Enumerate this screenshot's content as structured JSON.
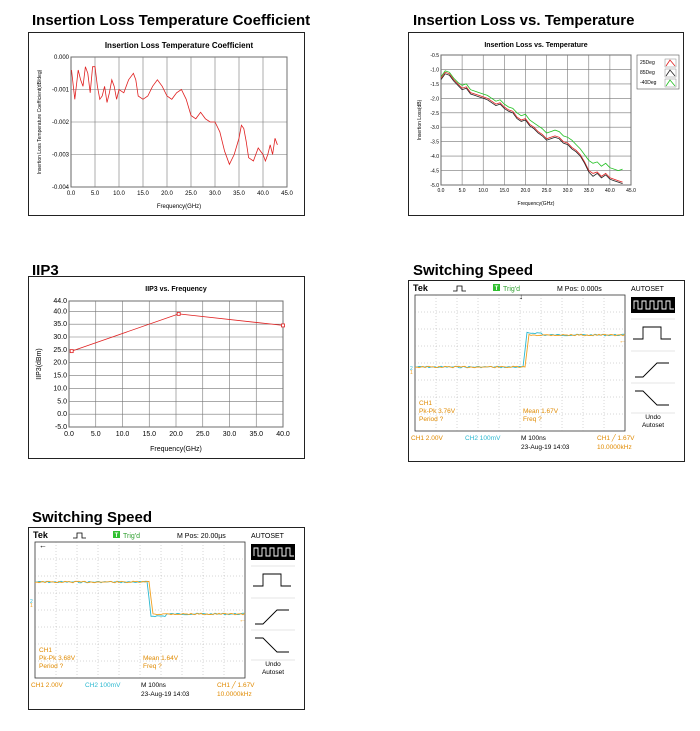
{
  "charts": [
    {
      "heading": "Insertion Loss Temperature Coefficient",
      "title": "Insertion Loss Temperature Coefficient",
      "xlabel": "Frequency(GHz)",
      "ylabel": "Insertion Loss Temperature Coefficient(dB/deg)",
      "xticks": [
        "0.0",
        "5.0",
        "10.0",
        "15.0",
        "20.0",
        "25.0",
        "30.0",
        "35.0",
        "40.0",
        "45.0"
      ],
      "yticks": [
        "0.000",
        "-0.001",
        "-0.002",
        "-0.003",
        "-0.004"
      ]
    },
    {
      "heading": "Insertion Loss vs. Temperature",
      "title": "Insertion Loss vs. Temperature",
      "xlabel": "Frequency(GHz)",
      "ylabel": "Insertion Loss(dB)",
      "xticks": [
        "0.0",
        "5.0",
        "10.0",
        "15.0",
        "20.0",
        "25.0",
        "30.0",
        "35.0",
        "40.0",
        "45.0"
      ],
      "yticks": [
        "-0.5",
        "-1.0",
        "-1.5",
        "-2.0",
        "-2.5",
        "-3.0",
        "-3.5",
        "-4.0",
        "-4.5",
        "-5.0"
      ],
      "legend": [
        "25Deg",
        "85Deg",
        "-40Deg"
      ]
    },
    {
      "heading": "IIP3",
      "title": "IIP3 vs. Frequency",
      "xlabel": "Frequency(GHz)",
      "ylabel": "IIP3(dBm)",
      "xticks": [
        "0.0",
        "5.0",
        "10.0",
        "15.0",
        "20.0",
        "25.0",
        "30.0",
        "35.0",
        "40.0"
      ],
      "yticks": [
        "44.0",
        "40.0",
        "35.0",
        "30.0",
        "25.0",
        "20.0",
        "15.0",
        "10.0",
        "5.0",
        "0.0",
        "-5.0"
      ]
    }
  ],
  "scopes": [
    {
      "heading": "Switching Speed",
      "brand": "Tek",
      "trig": "Trig'd",
      "mpos": "M Pos: 0.000s",
      "autoset": "AUTOSET",
      "undo": "Undo",
      "undo2": "Autoset",
      "ch1_label": "CH1",
      "pkpk": "Pk-Pk 3.76V",
      "period": "Period ?",
      "mean": "Mean 1.67V",
      "freq": "Freq ?",
      "ch1_scale": "CH1  2.00V",
      "ch2_scale": "CH2  100mV",
      "timebase": "M 100ns",
      "date": "23-Aug-19 14:03",
      "trig_level": "CH1 ╱ 1.67V",
      "trig_freq": "10.0000kHz"
    },
    {
      "heading": "Switching Speed",
      "brand": "Tek",
      "trig": "Trig'd",
      "mpos": "M Pos: 20.00µs",
      "autoset": "AUTOSET",
      "undo": "Undo",
      "undo2": "Autoset",
      "ch1_label": "CH1",
      "pkpk": "Pk-Pk 3.68V",
      "period": "Period ?",
      "mean": "Mean 1.64V",
      "freq": "Freq ?",
      "ch1_scale": "CH1  2.00V",
      "ch2_scale": "CH2  100mV",
      "timebase": "M 100ns",
      "date": "23-Aug-19 14:03",
      "trig_level": "CH1 ╱ 1.67V",
      "trig_freq": "10.0000kHz"
    }
  ],
  "chart_data": [
    {
      "type": "line",
      "title": "Insertion Loss Temperature Coefficient",
      "xlabel": "Frequency(GHz)",
      "ylabel": "Insertion Loss Temperature Coefficient(dB/deg)",
      "xlim": [
        0,
        45
      ],
      "ylim": [
        -0.004,
        0.0
      ],
      "color": "#e02020",
      "x": [
        0.1,
        0.8,
        1.5,
        2.0,
        2.5,
        3.0,
        3.5,
        4.0,
        4.5,
        5.0,
        5.5,
        6.0,
        6.5,
        7.0,
        7.5,
        8.0,
        8.5,
        9.0,
        9.5,
        10.0,
        11.0,
        12.0,
        13.0,
        13.5,
        14.0,
        15.0,
        16.0,
        17.0,
        18.0,
        19.0,
        20.0,
        21.0,
        22.0,
        23.0,
        24.0,
        25.0,
        26.0,
        27.0,
        28.0,
        29.0,
        30.0,
        31.0,
        32.0,
        33.0,
        34.0,
        35.0,
        35.5,
        36.0,
        36.5,
        37.0,
        38.0,
        39.0,
        40.0,
        40.5,
        41.0,
        41.5,
        42.0,
        42.5,
        43.0
      ],
      "y": [
        -0.0004,
        -0.0013,
        -0.0004,
        -0.0007,
        -0.0009,
        -0.0003,
        -0.0005,
        -0.0011,
        -0.0003,
        -0.0003,
        -0.0009,
        -0.0013,
        -0.0012,
        -0.0009,
        -0.0014,
        -0.0011,
        -0.0007,
        -0.0009,
        -0.0013,
        -0.001,
        -0.0011,
        -0.0007,
        -0.0005,
        -0.0007,
        -0.0012,
        -0.0013,
        -0.0012,
        -0.0009,
        -0.0007,
        -0.0009,
        -0.0012,
        -0.0013,
        -0.0011,
        -0.001,
        -0.0013,
        -0.0018,
        -0.0019,
        -0.0017,
        -0.0019,
        -0.002,
        -0.002,
        -0.0023,
        -0.0029,
        -0.0033,
        -0.003,
        -0.0025,
        -0.0021,
        -0.0022,
        -0.0026,
        -0.0031,
        -0.0032,
        -0.0028,
        -0.003,
        -0.0032,
        -0.003,
        -0.0027,
        -0.003,
        -0.0025,
        -0.0027
      ]
    },
    {
      "type": "line",
      "title": "Insertion Loss vs. Temperature",
      "xlabel": "Frequency(GHz)",
      "ylabel": "Insertion Loss(dB)",
      "xlim": [
        0,
        45
      ],
      "ylim": [
        -5.0,
        -0.5
      ],
      "legend_position": "top-right",
      "x": [
        0,
        1,
        2,
        3,
        4,
        5,
        6,
        7,
        8,
        9,
        10,
        11,
        12,
        13,
        14,
        15,
        16,
        17,
        18,
        19,
        20,
        21,
        22,
        23,
        24,
        25,
        26,
        27,
        28,
        29,
        30,
        31,
        32,
        33,
        34,
        35,
        36,
        37,
        38,
        39,
        40,
        41,
        42,
        43
      ],
      "series": [
        {
          "name": "25Deg",
          "color": "#e02020",
          "values": [
            -1.3,
            -1.1,
            -1.15,
            -1.35,
            -1.5,
            -1.65,
            -1.6,
            -1.8,
            -1.85,
            -1.9,
            -1.95,
            -2.0,
            -2.1,
            -2.2,
            -2.15,
            -2.3,
            -2.4,
            -2.45,
            -2.65,
            -2.75,
            -2.7,
            -2.9,
            -3.0,
            -3.15,
            -3.25,
            -3.4,
            -3.35,
            -3.3,
            -3.35,
            -3.5,
            -3.55,
            -3.7,
            -3.8,
            -3.95,
            -4.2,
            -4.5,
            -4.6,
            -4.55,
            -4.7,
            -4.6,
            -4.75,
            -4.8,
            -4.85,
            -4.9
          ]
        },
        {
          "name": "85Deg",
          "color": "#222222",
          "values": [
            -1.35,
            -1.15,
            -1.2,
            -1.4,
            -1.55,
            -1.7,
            -1.65,
            -1.85,
            -1.9,
            -1.95,
            -2.0,
            -2.05,
            -2.15,
            -2.25,
            -2.2,
            -2.35,
            -2.45,
            -2.5,
            -2.7,
            -2.8,
            -2.75,
            -2.95,
            -3.05,
            -3.2,
            -3.3,
            -3.45,
            -3.4,
            -3.35,
            -3.4,
            -3.55,
            -3.6,
            -3.75,
            -3.85,
            -4.0,
            -4.25,
            -4.55,
            -4.7,
            -4.6,
            -4.75,
            -4.65,
            -4.8,
            -4.85,
            -4.9,
            -4.95
          ]
        },
        {
          "name": "-40Deg",
          "color": "#22c022",
          "values": [
            -1.25,
            -1.05,
            -1.1,
            -1.3,
            -1.45,
            -1.55,
            -1.5,
            -1.7,
            -1.75,
            -1.8,
            -1.85,
            -1.9,
            -2.0,
            -2.1,
            -2.05,
            -2.2,
            -2.3,
            -2.35,
            -2.5,
            -2.6,
            -2.55,
            -2.75,
            -2.85,
            -2.95,
            -3.05,
            -3.2,
            -3.15,
            -3.1,
            -3.15,
            -3.3,
            -3.35,
            -3.45,
            -3.6,
            -3.75,
            -3.95,
            -4.15,
            -4.25,
            -4.2,
            -4.35,
            -4.25,
            -4.4,
            -4.45,
            -4.5,
            -4.45
          ]
        }
      ]
    },
    {
      "type": "line",
      "title": "IIP3 vs. Frequency",
      "xlabel": "Frequency(GHz)",
      "ylabel": "IIP3(dBm)",
      "xlim": [
        0,
        40
      ],
      "ylim": [
        -5,
        44
      ],
      "color": "#e02020",
      "x": [
        0.5,
        20.5,
        40.0
      ],
      "y": [
        24.5,
        39.0,
        34.5
      ]
    }
  ]
}
